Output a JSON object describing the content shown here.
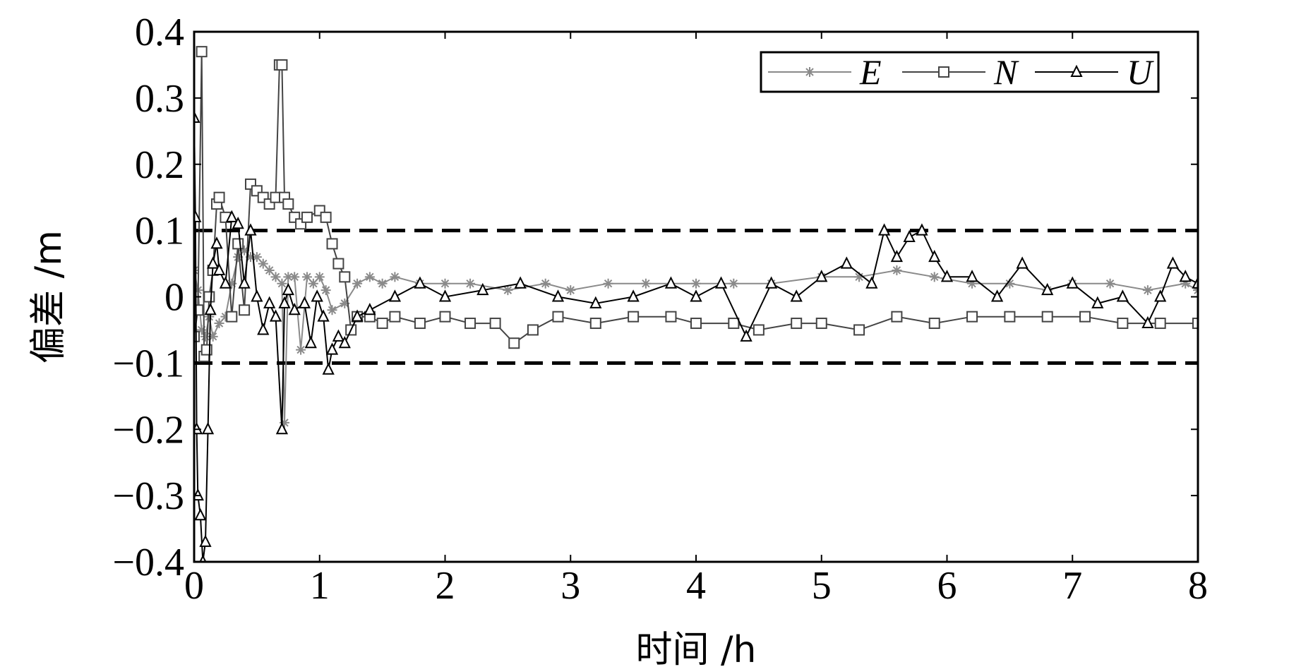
{
  "chart_data": {
    "type": "line",
    "xlabel": "时间 /h",
    "ylabel": "偏差 /m",
    "xlim": [
      0,
      8
    ],
    "ylim": [
      -0.4,
      0.4
    ],
    "xticks": [
      0,
      1,
      2,
      3,
      4,
      5,
      6,
      7,
      8
    ],
    "xtick_labels": [
      "0",
      "1",
      "2",
      "3",
      "4",
      "5",
      "6",
      "7",
      "8"
    ],
    "yticks": [
      0.4,
      0.3,
      0.2,
      0.1,
      0,
      -0.1,
      -0.2,
      -0.3,
      -0.4
    ],
    "ytick_labels": [
      "0.4",
      "0.3",
      "0.2",
      "0.1",
      "0",
      "−0.1",
      "−0.2",
      "−0.3",
      "−0.4"
    ],
    "grid": false,
    "legend_position": "top-right",
    "reference_lines": [
      0.1,
      -0.1
    ],
    "series": [
      {
        "name": "E",
        "marker": "star",
        "color": "#8a8a8a",
        "x": [
          0,
          0.03,
          0.06,
          0.09,
          0.12,
          0.15,
          0.2,
          0.25,
          0.3,
          0.35,
          0.4,
          0.45,
          0.5,
          0.55,
          0.6,
          0.65,
          0.7,
          0.72,
          0.75,
          0.8,
          0.85,
          0.9,
          0.95,
          1.0,
          1.05,
          1.1,
          1.2,
          1.3,
          1.4,
          1.5,
          1.6,
          1.8,
          2.0,
          2.2,
          2.5,
          2.8,
          3.0,
          3.3,
          3.6,
          4.0,
          4.3,
          4.6,
          5.0,
          5.3,
          5.6,
          5.9,
          6.2,
          6.5,
          6.8,
          7.0,
          7.3,
          7.6,
          7.9,
          8.0
        ],
        "y": [
          0.04,
          0.01,
          -0.05,
          -0.06,
          -0.03,
          -0.06,
          -0.04,
          -0.03,
          0.02,
          0.06,
          0.07,
          0.06,
          0.06,
          0.05,
          0.04,
          0.03,
          0.02,
          -0.19,
          0.03,
          0.03,
          -0.08,
          0.03,
          0.02,
          0.03,
          0.01,
          -0.02,
          -0.01,
          0.02,
          0.03,
          0.02,
          0.03,
          0.02,
          0.02,
          0.02,
          0.01,
          0.02,
          0.01,
          0.02,
          0.02,
          0.02,
          0.02,
          0.02,
          0.03,
          0.03,
          0.04,
          0.03,
          0.02,
          0.02,
          0.01,
          0.02,
          0.02,
          0.01,
          0.02,
          0.01
        ]
      },
      {
        "name": "N",
        "marker": "square",
        "color": "#444444",
        "x": [
          0,
          0.03,
          0.06,
          0.08,
          0.1,
          0.12,
          0.15,
          0.18,
          0.2,
          0.25,
          0.3,
          0.35,
          0.4,
          0.45,
          0.5,
          0.55,
          0.6,
          0.65,
          0.68,
          0.7,
          0.72,
          0.75,
          0.8,
          0.85,
          0.9,
          1.0,
          1.05,
          1.1,
          1.15,
          1.2,
          1.25,
          1.3,
          1.4,
          1.5,
          1.6,
          1.8,
          2.0,
          2.2,
          2.4,
          2.55,
          2.7,
          2.9,
          3.2,
          3.5,
          3.8,
          4.0,
          4.3,
          4.5,
          4.8,
          5.0,
          5.3,
          5.6,
          5.9,
          6.2,
          6.5,
          6.8,
          7.1,
          7.4,
          7.7,
          8.0
        ],
        "y": [
          -0.06,
          -0.02,
          0.37,
          -0.09,
          -0.08,
          0.0,
          0.04,
          0.14,
          0.15,
          0.12,
          -0.03,
          0.08,
          -0.02,
          0.17,
          0.16,
          0.15,
          0.14,
          0.15,
          0.35,
          0.35,
          0.15,
          0.14,
          0.12,
          0.11,
          0.12,
          0.13,
          0.12,
          0.08,
          0.05,
          0.03,
          -0.05,
          -0.03,
          -0.03,
          -0.04,
          -0.03,
          -0.04,
          -0.03,
          -0.04,
          -0.04,
          -0.07,
          -0.05,
          -0.03,
          -0.04,
          -0.03,
          -0.03,
          -0.04,
          -0.04,
          -0.05,
          -0.04,
          -0.04,
          -0.05,
          -0.03,
          -0.04,
          -0.03,
          -0.03,
          -0.03,
          -0.03,
          -0.04,
          -0.04,
          -0.04
        ]
      },
      {
        "name": "U",
        "marker": "triangle",
        "color": "#000000",
        "x": [
          0,
          0.01,
          0.02,
          0.03,
          0.05,
          0.07,
          0.09,
          0.11,
          0.13,
          0.15,
          0.18,
          0.2,
          0.25,
          0.3,
          0.35,
          0.4,
          0.45,
          0.5,
          0.55,
          0.6,
          0.65,
          0.7,
          0.72,
          0.75,
          0.8,
          0.88,
          0.93,
          0.98,
          1.03,
          1.07,
          1.1,
          1.15,
          1.2,
          1.3,
          1.4,
          1.6,
          1.8,
          2.0,
          2.3,
          2.6,
          2.9,
          3.2,
          3.5,
          3.8,
          4.0,
          4.2,
          4.4,
          4.6,
          4.8,
          5.0,
          5.2,
          5.4,
          5.5,
          5.6,
          5.7,
          5.8,
          5.9,
          6.0,
          6.2,
          6.4,
          6.6,
          6.8,
          7.0,
          7.2,
          7.4,
          7.6,
          7.7,
          7.8,
          7.9,
          8.0
        ],
        "y": [
          0.27,
          0.12,
          -0.2,
          -0.3,
          -0.33,
          -0.4,
          -0.37,
          -0.2,
          -0.02,
          0.05,
          0.08,
          0.04,
          0.02,
          0.12,
          0.11,
          0.02,
          0.1,
          0.0,
          -0.05,
          -0.01,
          -0.03,
          -0.2,
          -0.01,
          0.01,
          -0.02,
          -0.01,
          -0.07,
          0.0,
          -0.03,
          -0.11,
          -0.08,
          -0.06,
          -0.07,
          -0.03,
          -0.02,
          0.0,
          0.02,
          0.0,
          0.01,
          0.02,
          0.0,
          -0.01,
          0.0,
          0.02,
          0.0,
          0.02,
          -0.06,
          0.02,
          0.0,
          0.03,
          0.05,
          0.02,
          0.1,
          0.06,
          0.09,
          0.1,
          0.06,
          0.03,
          0.03,
          0.0,
          0.05,
          0.01,
          0.02,
          -0.01,
          0.0,
          -0.04,
          0.0,
          0.05,
          0.03,
          0.02
        ]
      }
    ]
  }
}
